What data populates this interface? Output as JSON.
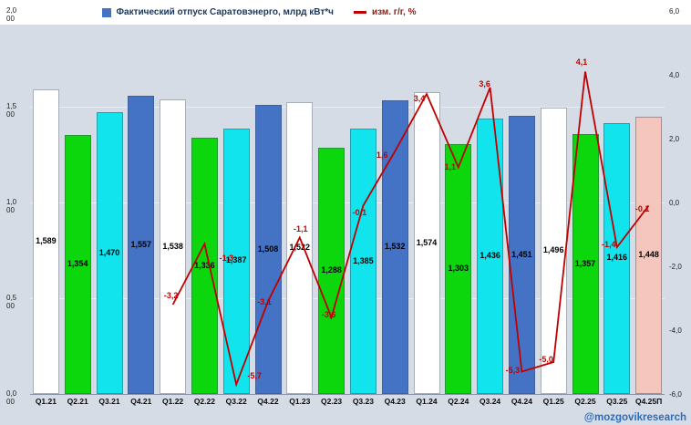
{
  "watermark": "@mozgovikresearch",
  "legend": [
    {
      "label": "Фактический отпуск Саратовэнерго, млрд кВт*ч",
      "marker": "square",
      "color": "#4472c4"
    },
    {
      "label": "изм. г/г, %",
      "marker": "dash",
      "color": "#c00000"
    }
  ],
  "chart_data": {
    "type": "bar",
    "title": "Фактический отпуск Саратовэнерго, млрд кВт*ч",
    "categories": [
      "Q1.21",
      "Q2.21",
      "Q3.21",
      "Q4.21",
      "Q1.22",
      "Q2.22",
      "Q3.22",
      "Q4.22",
      "Q1.23",
      "Q2.23",
      "Q3.23",
      "Q4.23",
      "Q1.24",
      "Q2.24",
      "Q3.24",
      "Q4.24",
      "Q1.25",
      "Q2.25",
      "Q3.25",
      "Q4.25П"
    ],
    "series": [
      {
        "name": "Фактический отпуск Саратовэнерго, млрд кВт*ч",
        "type": "bar",
        "values": [
          1.589,
          1.354,
          1.47,
          1.557,
          1.538,
          1.336,
          1.387,
          1.508,
          1.522,
          1.288,
          1.385,
          1.532,
          1.574,
          1.303,
          1.436,
          1.451,
          1.496,
          1.357,
          1.416,
          1.448
        ],
        "labels": [
          "1,589",
          "1,354",
          "1,470",
          "1,557",
          "1,538",
          "1,336",
          "1,387",
          "1,508",
          "1,522",
          "1,288",
          "1,385",
          "1,532",
          "1,574",
          "1,303",
          "1,436",
          "1,451",
          "1,496",
          "1,357",
          "1,416",
          "1,448"
        ],
        "colors": [
          "#ffffff",
          "#0cd60c",
          "#12e4ee",
          "#4472c4",
          "#ffffff",
          "#0cd60c",
          "#12e4ee",
          "#4472c4",
          "#ffffff",
          "#0cd60c",
          "#12e4ee",
          "#4472c4",
          "#ffffff",
          "#0cd60c",
          "#12e4ee",
          "#4472c4",
          "#ffffff",
          "#0cd60c",
          "#12e4ee",
          "#f4c6bd"
        ]
      },
      {
        "name": "изм. г/г, %",
        "type": "line",
        "color": "#c00000",
        "start_index": 4,
        "values": [
          -3.2,
          -1.3,
          -5.7,
          -3.1,
          -1.1,
          -3.6,
          -0.1,
          1.6,
          3.4,
          1.1,
          3.6,
          -5.3,
          -5.0,
          4.1,
          -1.4,
          -0.1
        ],
        "labels": [
          "-3,2",
          "-1,3",
          "-5,7",
          "-3,1",
          "-1,1",
          "-3,6",
          "-0,1",
          "1,6",
          "3,4",
          "1,1",
          "3,6",
          "-5,3",
          "-5,0",
          "4,1",
          "-1,4",
          "-0,1"
        ]
      }
    ],
    "left_axis": {
      "range": [
        0,
        2
      ],
      "ticks": [
        "2,000",
        "1,500",
        "1,000",
        "0,500",
        "0,000"
      ]
    },
    "right_axis": {
      "range": [
        -6,
        6
      ],
      "ticks": [
        "6,0",
        "4,0",
        "2,0",
        "0,0",
        "-2,0",
        "-4,0",
        "-6,0"
      ]
    },
    "grid": true,
    "legend_position": "top"
  }
}
